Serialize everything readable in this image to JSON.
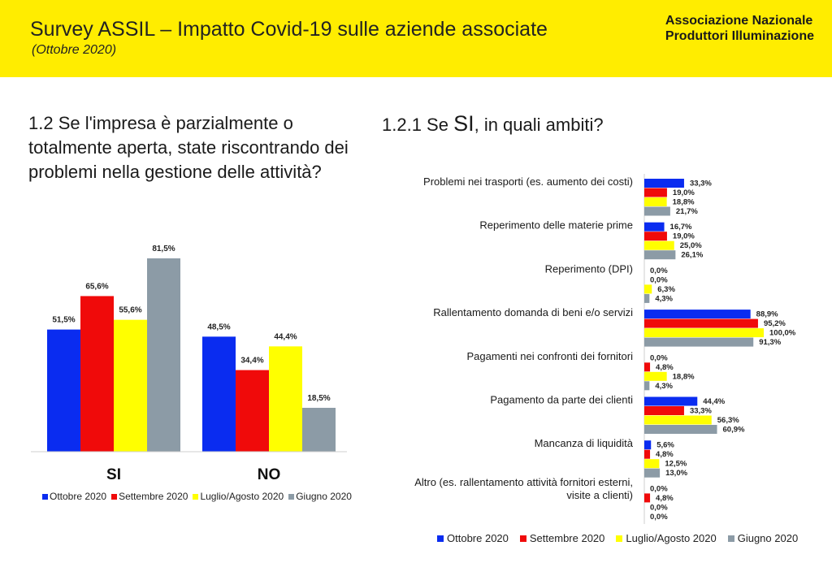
{
  "header": {
    "title": "Survey ASSIL – Impatto Covid-19 sulle aziende associate",
    "subtitle": "(Ottobre 2020)",
    "org_line1": "Associazione Nazionale",
    "org_line2": "Produttori Illuminazione"
  },
  "question": "1.2 Se l'impresa è parzialmente o totalmente aperta, state riscontrando dei problemi nella gestione delle attività?",
  "subquestion": {
    "prefix": "1.2.1 Se ",
    "emph": "SI",
    "suffix": ", in quali ambiti?"
  },
  "colors": {
    "Ottobre 2020": "#0a2cf0",
    "Settembre 2020": "#f00a0a",
    "Luglio/Agosto 2020": "#ffff00",
    "Giugno 2020": "#8c9ba6"
  },
  "chart_data": [
    {
      "type": "bar",
      "categories": [
        "SI",
        "NO"
      ],
      "series": [
        {
          "name": "Ottobre 2020",
          "values": [
            51.5,
            48.5
          ],
          "labels": [
            "51,5%",
            "48,5%"
          ]
        },
        {
          "name": "Settembre 2020",
          "values": [
            65.6,
            34.4
          ],
          "labels": [
            "65,6%",
            "34,4%"
          ]
        },
        {
          "name": "Luglio/Agosto 2020",
          "values": [
            55.6,
            44.4
          ],
          "labels": [
            "55,6%",
            "44,4%"
          ]
        },
        {
          "name": "Giugno 2020",
          "values": [
            81.5,
            18.5
          ],
          "labels": [
            "81,5%",
            "18,5%"
          ]
        }
      ],
      "ylim": [
        0,
        100
      ],
      "grid": false,
      "legend": "bottom"
    },
    {
      "type": "bar",
      "orientation": "horizontal",
      "categories": [
        [
          "Problemi nei trasporti (es. aumento dei costi)"
        ],
        [
          "Reperimento delle materie prime"
        ],
        [
          "Reperimento (DPI)"
        ],
        [
          "Rallentamento domanda di beni e/o servizi"
        ],
        [
          "Pagamenti nei confronti dei fornitori"
        ],
        [
          "Pagamento da parte dei clienti"
        ],
        [
          "Mancanza di liquidità"
        ],
        [
          "Altro (es. rallentamento attività fornitori esterni,",
          "visite a clienti)"
        ]
      ],
      "series": [
        {
          "name": "Ottobre 2020",
          "values": [
            33.3,
            16.7,
            0.0,
            88.9,
            0.0,
            44.4,
            5.6,
            0.0
          ],
          "labels": [
            "33,3%",
            "16,7%",
            "0,0%",
            "88,9%",
            "0,0%",
            "44,4%",
            "5,6%",
            "0,0%"
          ]
        },
        {
          "name": "Settembre 2020",
          "values": [
            19.0,
            19.0,
            0.0,
            95.2,
            4.8,
            33.3,
            4.8,
            4.8
          ],
          "labels": [
            "19,0%",
            "19,0%",
            "0,0%",
            "95,2%",
            "4,8%",
            "33,3%",
            "4,8%",
            "4,8%"
          ]
        },
        {
          "name": "Luglio/Agosto 2020",
          "values": [
            18.8,
            25.0,
            6.3,
            100.0,
            18.8,
            56.3,
            12.5,
            0.0
          ],
          "labels": [
            "18,8%",
            "25,0%",
            "6,3%",
            "100,0%",
            "18,8%",
            "56,3%",
            "12,5%",
            "0,0%"
          ]
        },
        {
          "name": "Giugno 2020",
          "values": [
            21.7,
            26.1,
            4.3,
            91.3,
            4.3,
            60.9,
            13.0,
            0.0
          ],
          "labels": [
            "21,7%",
            "26,1%",
            "4,3%",
            "91,3%",
            "4,3%",
            "60,9%",
            "13,0%",
            "0,0%"
          ]
        }
      ],
      "xlim": [
        0,
        100
      ],
      "grid": false,
      "legend": "bottom"
    }
  ]
}
